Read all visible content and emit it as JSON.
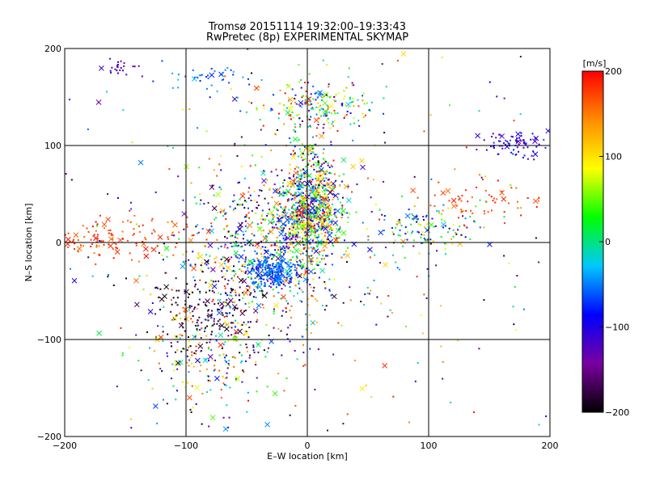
{
  "chart_data": {
    "type": "scatter",
    "title": "Tromsø 20151114 19:32:00–19:33:43",
    "subtitle": "RwPretec (8p) EXPERIMENTAL SKYMAP",
    "xlabel": "E–W location [km]",
    "ylabel": "N–S location [km]",
    "xlim": [
      -200,
      200
    ],
    "ylim": [
      -200,
      200
    ],
    "xticks": [
      -200,
      -100,
      0,
      100,
      200
    ],
    "yticks": [
      -200,
      -100,
      0,
      100,
      200
    ],
    "grid": true,
    "colorbar": {
      "label": "[m/s]",
      "range": [
        -200,
        200
      ],
      "ticks": [
        200,
        100,
        0,
        -100,
        -200
      ],
      "colormap": [
        "#000000",
        "#7a00a0",
        "#0000ff",
        "#00c8ff",
        "#00ff00",
        "#ffff00",
        "#ff8c00",
        "#ff0000"
      ],
      "placement": "right"
    },
    "markers": [
      "dot",
      "x"
    ],
    "clusters": [
      {
        "x": 0,
        "y": 28,
        "sx": 14,
        "sy": 20,
        "n": 700,
        "v": [
          -150,
          200
        ]
      },
      {
        "x": -40,
        "y": -10,
        "sx": 35,
        "sy": 40,
        "n": 650,
        "v": [
          -200,
          200
        ]
      },
      {
        "x": 8,
        "y": 140,
        "sx": 22,
        "sy": 12,
        "n": 200,
        "v": [
          -150,
          200
        ]
      },
      {
        "x": 5,
        "y": 70,
        "sx": 10,
        "sy": 20,
        "n": 200,
        "v": [
          -200,
          200
        ]
      },
      {
        "x": -28,
        "y": -30,
        "sx": 12,
        "sy": 8,
        "n": 220,
        "v": [
          -80,
          -40
        ]
      },
      {
        "x": -165,
        "y": 5,
        "sx": 28,
        "sy": 10,
        "n": 120,
        "v": [
          150,
          200
        ]
      },
      {
        "x": -80,
        "y": -120,
        "sx": 30,
        "sy": 30,
        "n": 220,
        "v": [
          -200,
          200
        ]
      },
      {
        "x": 170,
        "y": 102,
        "sx": 14,
        "sy": 6,
        "n": 80,
        "v": [
          -140,
          -60
        ]
      },
      {
        "x": 100,
        "y": 15,
        "sx": 22,
        "sy": 12,
        "n": 120,
        "v": [
          -200,
          150
        ]
      },
      {
        "x": 145,
        "y": 45,
        "sx": 25,
        "sy": 10,
        "n": 60,
        "v": [
          150,
          200
        ]
      },
      {
        "x": -155,
        "y": 180,
        "sx": 8,
        "sy": 5,
        "n": 25,
        "v": [
          -140,
          -100
        ]
      },
      {
        "x": -80,
        "y": -70,
        "sx": 25,
        "sy": 20,
        "n": 150,
        "v": [
          -200,
          -160
        ]
      },
      {
        "x": -90,
        "y": 170,
        "sx": 20,
        "sy": 6,
        "n": 40,
        "v": [
          -80,
          -20
        ]
      },
      {
        "x": 0,
        "y": 0,
        "sx": 110,
        "sy": 110,
        "n": 350,
        "v": [
          -200,
          200
        ]
      }
    ]
  }
}
